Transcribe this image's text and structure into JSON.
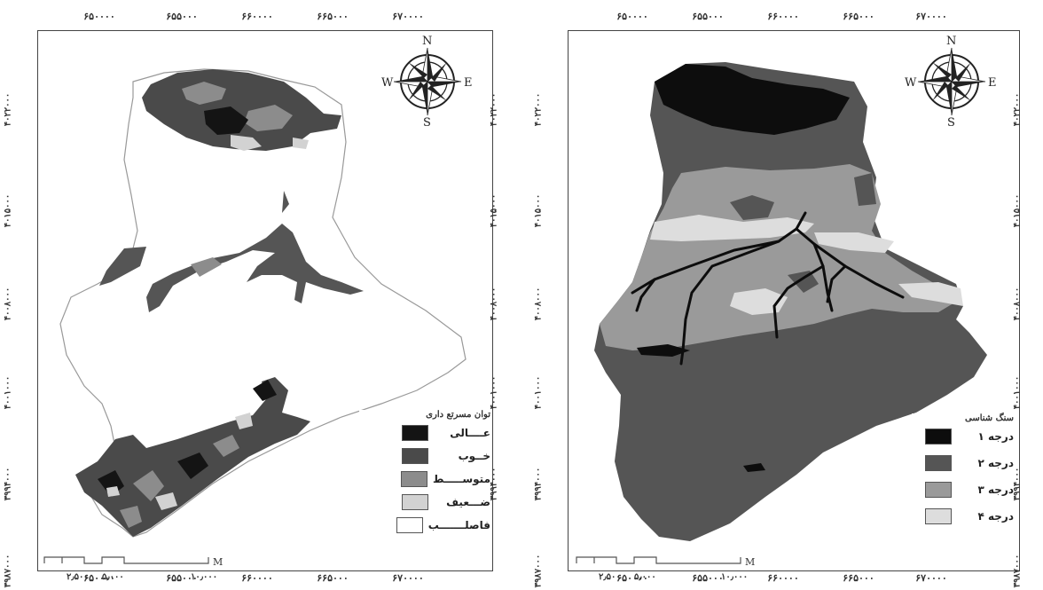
{
  "maps": [
    {
      "id": "left",
      "top_ticks": [
        "۶۵۰۰۰۰",
        "۶۵۵۰۰۰",
        "۶۶۰۰۰۰",
        "۶۶۵۰۰۰",
        "۶۷۰۰۰۰"
      ],
      "bottom_ticks": [
        "۶۵۰۰۰۰",
        "۶۵۵۰۰۰",
        "۶۶۰۰۰۰",
        "۶۶۵۰۰۰",
        "۶۷۰۰۰۰"
      ],
      "side_ticks": [
        "۴۰۲۲۰۰۰",
        "۴۰۱۵۰۰۰",
        "۴۰۰۸۰۰۰",
        "۴۰۰۱۰۰۰",
        "۳۹۹۴۰۰۰",
        "۳۹۸۷۰۰۰"
      ],
      "compass": {
        "n": "N",
        "s": "S",
        "e": "E",
        "w": "W"
      },
      "scale": {
        "unit": "M",
        "labels": [
          "۲٫۵۰۰",
          "۵٫۰۰۰",
          "۱۰٫۰۰۰"
        ]
      },
      "legend": {
        "title": "توان مسرتع داری",
        "items": [
          {
            "label": "عــــالی",
            "color": "#141414"
          },
          {
            "label": "خــوب",
            "color": "#4a4a4a"
          },
          {
            "label": "متوســـــط",
            "color": "#8c8c8c"
          },
          {
            "label": "ضـــعیف",
            "color": "#d2d2d2"
          },
          {
            "label": "فاصلـــــــب",
            "color": "#ffffff"
          }
        ]
      }
    },
    {
      "id": "right",
      "top_ticks": [
        "۶۵۰۰۰۰",
        "۶۵۵۰۰۰",
        "۶۶۰۰۰۰",
        "۶۶۵۰۰۰",
        "۶۷۰۰۰۰"
      ],
      "bottom_ticks": [
        "۶۵۰۰۰۰",
        "۶۵۵۰۰۰",
        "۶۶۰۰۰۰",
        "۶۶۵۰۰۰",
        "۶۷۰۰۰۰"
      ],
      "side_ticks": [
        "۴۰۲۲۰۰۰",
        "۴۰۱۵۰۰۰",
        "۴۰۰۸۰۰۰",
        "۴۰۰۱۰۰۰",
        "۳۹۹۴۰۰۰",
        "۳۹۸۷۰۰۰"
      ],
      "compass": {
        "n": "N",
        "s": "S",
        "e": "E",
        "w": "W"
      },
      "scale": {
        "unit": "M",
        "labels": [
          "۲٫۵۰۰",
          "۵٫۰۰۰",
          "۱۰٫۰۰۰"
        ]
      },
      "legend": {
        "title": "سنگ شناسی",
        "items": [
          {
            "label": "درجه ۱",
            "color": "#0d0d0d"
          },
          {
            "label": "درجه ۲",
            "color": "#555555"
          },
          {
            "label": "درجه ۳",
            "color": "#9a9a9a"
          },
          {
            "label": "درجه ۴",
            "color": "#dddddd"
          }
        ]
      }
    }
  ]
}
